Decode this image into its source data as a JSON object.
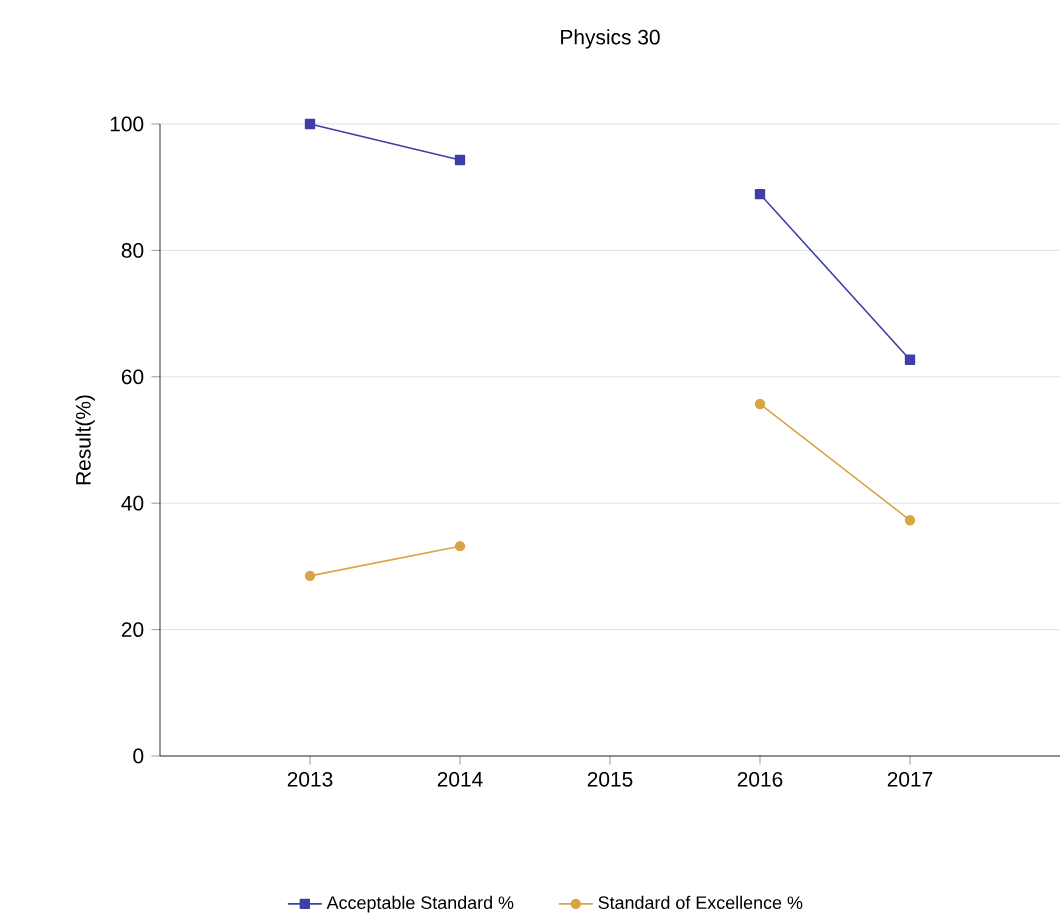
{
  "chart_data": {
    "type": "line",
    "title": "Physics 30",
    "ylabel": "Result(%)",
    "categories": [
      "2013",
      "2014",
      "2015",
      "2016",
      "2017"
    ],
    "series": [
      {
        "name": "Acceptable Standard %",
        "color": "#3f3fa8",
        "marker": "square",
        "values": [
          100,
          94.3,
          null,
          88.9,
          62.7
        ]
      },
      {
        "name": "Standard of Excellence %",
        "color": "#d9a441",
        "marker": "circle",
        "values": [
          28.5,
          33.2,
          null,
          55.7,
          37.3
        ]
      }
    ],
    "ylim": [
      0,
      100
    ],
    "yticks": [
      0,
      20,
      40,
      60,
      80,
      100
    ],
    "grid": "y",
    "legend": "bottom"
  }
}
